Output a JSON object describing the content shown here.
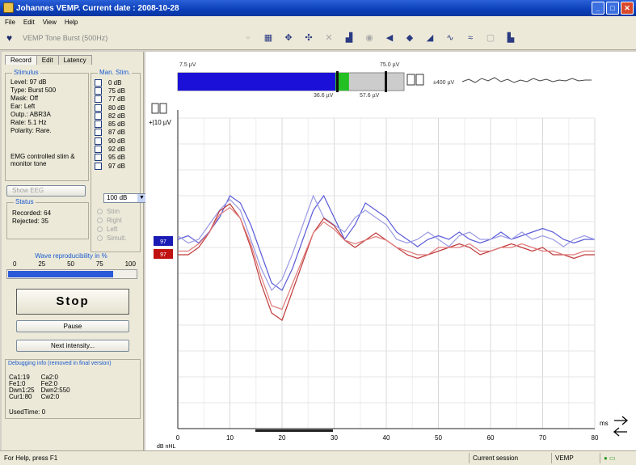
{
  "window": {
    "title": "Johannes VEMP. Current date : 2008-10-28"
  },
  "menu": [
    "File",
    "Edit",
    "View",
    "Help"
  ],
  "toolbar": {
    "test_label": "VEMP Tone Burst (500Hz)"
  },
  "tabs": [
    "Record",
    "Edit",
    "Latency"
  ],
  "stimulus": {
    "title": "Stimulus",
    "lines": [
      "Level: 97 dB",
      "Type: Burst 500",
      "Mask: Off",
      "Ear: Left",
      "Outp.: ABR3A",
      "Rate: 5.1 Hz",
      "Polarity: Rare."
    ],
    "emg_note": "EMG controlled stim & monitor tone"
  },
  "man_stim": {
    "title": "Man. Stim.",
    "levels": [
      "0 dB",
      "75 dB",
      "77 dB",
      "80 dB",
      "82 dB",
      "85 dB",
      "87 dB",
      "90 dB",
      "92 dB",
      "95 dB",
      "97 dB"
    ],
    "dropdown": "100 dB",
    "options": [
      "Stim",
      "Right",
      "Left",
      "Simult."
    ]
  },
  "show_eeg_label": "Show EEG",
  "status": {
    "title": "Status",
    "recorded_label": "Recorded:",
    "recorded": "64",
    "rejected_label": "Rejected:",
    "rejected": "35"
  },
  "reproducibility": {
    "title": "Wave reproducibility in %",
    "ticks": [
      "0",
      "25",
      "50",
      "75",
      "100"
    ],
    "value": 0.82
  },
  "buttons": {
    "stop": "Stop",
    "pause": "Pause",
    "next": "Next intensity..."
  },
  "debug": {
    "title": "Debugging info (removed in final version)",
    "col1": [
      "Ca1:19",
      "Fe1:0",
      "Dwn1:25",
      "Cur1:80"
    ],
    "col2": [
      "Ca2:0",
      "Fe2:0",
      "Dwn2:550",
      "Cw2:0"
    ],
    "used_time": "UsedTime: 0"
  },
  "eeg_bar": {
    "left_label": "7.5 µV",
    "right_label": "75.0 µV",
    "val1": "36.6 µV",
    "val2": "57.6 µV",
    "scale_label": "±400 µV",
    "blue_fraction": 0.81,
    "green_fraction": 0.06
  },
  "plot": {
    "y_scale": "+|10 µV",
    "x_ticks": [
      "0",
      "10",
      "20",
      "30",
      "40",
      "50",
      "60",
      "70",
      "80"
    ],
    "x_unit": "ms",
    "db_label": "dB nHL",
    "markers": [
      {
        "label": "97",
        "color": "#1a1ab4"
      },
      {
        "label": "97",
        "color": "#c01010"
      }
    ]
  },
  "chart_data": {
    "type": "line",
    "xlim": [
      0,
      80
    ],
    "series": [
      {
        "color": "#5a5ad8",
        "x": [
          0,
          2,
          4,
          6,
          8,
          10,
          12,
          14,
          16,
          18,
          20,
          22,
          24,
          26,
          28,
          30,
          32,
          34,
          36,
          38,
          40,
          42,
          44,
          46,
          48,
          50,
          52,
          54,
          56,
          58,
          60,
          62,
          64,
          66,
          68,
          70,
          72,
          74,
          76,
          78,
          80
        ],
        "y": [
          0,
          0.5,
          -0.5,
          1,
          3,
          6,
          5,
          2,
          -2,
          -6,
          -7,
          -4,
          0,
          4,
          6,
          3,
          0,
          2,
          5,
          4,
          3,
          1,
          0,
          -1,
          0,
          0.5,
          0,
          1,
          0,
          -0.5,
          0,
          1,
          0,
          0.5,
          1,
          1.5,
          1,
          0,
          -0.5,
          0,
          0
        ]
      },
      {
        "color": "#9a9ae4",
        "x": [
          0,
          2,
          4,
          6,
          8,
          10,
          12,
          14,
          16,
          18,
          20,
          22,
          24,
          26,
          28,
          30,
          32,
          34,
          36,
          38,
          40,
          42,
          44,
          46,
          48,
          50,
          52,
          54,
          56,
          58,
          60,
          62,
          64,
          66,
          68,
          70,
          72,
          74,
          76,
          78,
          80
        ],
        "y": [
          0.5,
          -0.5,
          0,
          2,
          4,
          5.5,
          4,
          0,
          -4,
          -7,
          -5.5,
          -2,
          2,
          6,
          3,
          2,
          1,
          3,
          4,
          3,
          2,
          0,
          -0.5,
          0,
          1,
          0,
          -1,
          0.5,
          1,
          0,
          0,
          0.5,
          0,
          1,
          0,
          0.5,
          0,
          -1,
          0,
          0.5,
          0
        ]
      },
      {
        "color": "#c03a3a",
        "x": [
          0,
          2,
          4,
          6,
          8,
          10,
          12,
          14,
          16,
          18,
          20,
          22,
          24,
          26,
          28,
          30,
          32,
          34,
          36,
          38,
          40,
          42,
          44,
          46,
          48,
          50,
          52,
          54,
          56,
          58,
          60,
          62,
          64,
          66,
          68,
          70,
          72,
          74,
          76,
          78,
          80
        ],
        "y": [
          -1,
          -1,
          0,
          2,
          5,
          6,
          4,
          0,
          -5,
          -9,
          -10,
          -6,
          -2,
          2,
          4,
          3,
          1,
          0,
          1,
          2,
          1,
          0,
          -1,
          -1.5,
          -1,
          -0.5,
          0,
          0.5,
          0,
          -1,
          -0.5,
          0,
          0.5,
          0,
          -0.5,
          0,
          -1,
          -1,
          -1.5,
          -1,
          -1
        ]
      },
      {
        "color": "#e07a7a",
        "x": [
          0,
          2,
          4,
          6,
          8,
          10,
          12,
          14,
          16,
          18,
          20,
          22,
          24,
          26,
          28,
          30,
          32,
          34,
          36,
          38,
          40,
          42,
          44,
          46,
          48,
          50,
          52,
          54,
          56,
          58,
          60,
          62,
          64,
          66,
          68,
          70,
          72,
          74,
          76,
          78,
          80
        ],
        "y": [
          -0.5,
          -0.5,
          0.5,
          2,
          4.5,
          5.5,
          4,
          0.5,
          -4,
          -8,
          -8.5,
          -5,
          -1.5,
          2,
          3.5,
          2.5,
          1,
          0.5,
          1,
          1.5,
          1,
          0,
          -0.5,
          -1,
          -1,
          0,
          0,
          0,
          0.5,
          -0.5,
          -0.5,
          0,
          0,
          0.5,
          0,
          -0.5,
          -0.5,
          -1,
          -1,
          -0.5,
          -0.5
        ]
      }
    ]
  },
  "statusbar": {
    "help": "For Help, press F1",
    "session": "Current session",
    "test": "VEMP"
  }
}
